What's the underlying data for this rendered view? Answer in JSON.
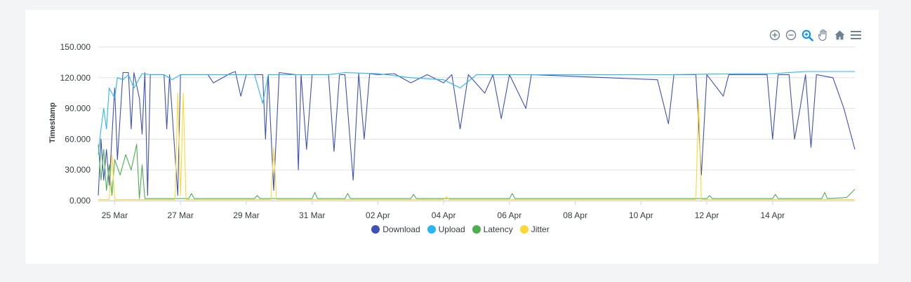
{
  "toolbar": {
    "icons": [
      "zoom-in-icon",
      "zoom-out-icon",
      "zoom-select-icon",
      "pan-hand-icon",
      "home-reset-icon",
      "menu-icon"
    ],
    "active_color": "#008ffb",
    "inactive_color": "#6e8192"
  },
  "chart_data": {
    "type": "line",
    "ylabel": "Timestamp",
    "ylim": [
      0,
      150
    ],
    "y_ticks": [
      "0.000",
      "30.000",
      "60.000",
      "90.000",
      "120.000",
      "150.000"
    ],
    "x_tick_labels": [
      "25 Mar",
      "27 Mar",
      "29 Mar",
      "31 Mar",
      "02 Apr",
      "04 Apr",
      "06 Apr",
      "08 Apr",
      "10 Apr",
      "12 Apr",
      "14 Apr"
    ],
    "xlim": [
      "2024-03-24T12:00",
      "2024-04-16T12:00"
    ],
    "grid": true,
    "legend_position": "bottom",
    "series": [
      {
        "name": "Download",
        "color": "#3f51b5",
        "points": [
          [
            "2024-03-24T12:00",
            5
          ],
          [
            "2024-03-24T14:00",
            60
          ],
          [
            "2024-03-24T16:00",
            20
          ],
          [
            "2024-03-24T18:00",
            50
          ],
          [
            "2024-03-24T20:00",
            15
          ],
          [
            "2024-03-25T00:00",
            110
          ],
          [
            "2024-03-25T02:00",
            40
          ],
          [
            "2024-03-25T06:00",
            125
          ],
          [
            "2024-03-25T10:00",
            125
          ],
          [
            "2024-03-25T12:00",
            70
          ],
          [
            "2024-03-25T14:00",
            125
          ],
          [
            "2024-03-25T18:00",
            100
          ],
          [
            "2024-03-25T20:00",
            65
          ],
          [
            "2024-03-25T22:00",
            125
          ],
          [
            "2024-03-26T00:00",
            5
          ],
          [
            "2024-03-26T02:00",
            123
          ],
          [
            "2024-03-26T12:00",
            123
          ],
          [
            "2024-03-26T14:00",
            70
          ],
          [
            "2024-03-26T16:00",
            123
          ],
          [
            "2024-03-26T22:00",
            5
          ],
          [
            "2024-03-27T00:00",
            123
          ],
          [
            "2024-03-27T20:00",
            123
          ],
          [
            "2024-03-28T00:00",
            115
          ],
          [
            "2024-03-28T12:00",
            124
          ],
          [
            "2024-03-28T16:00",
            126
          ],
          [
            "2024-03-28T20:00",
            102
          ],
          [
            "2024-03-29T00:00",
            123
          ],
          [
            "2024-03-29T12:00",
            123
          ],
          [
            "2024-03-29T14:00",
            60
          ],
          [
            "2024-03-29T16:00",
            123
          ],
          [
            "2024-03-29T20:00",
            10
          ],
          [
            "2024-03-30T00:00",
            125
          ],
          [
            "2024-03-30T12:00",
            123
          ],
          [
            "2024-03-30T14:00",
            30
          ],
          [
            "2024-03-30T16:00",
            123
          ],
          [
            "2024-03-30T20:00",
            50
          ],
          [
            "2024-03-31T00:00",
            123
          ],
          [
            "2024-03-31T12:00",
            123
          ],
          [
            "2024-03-31T16:00",
            48
          ],
          [
            "2024-03-31T20:00",
            123
          ],
          [
            "2024-04-01T00:00",
            123
          ],
          [
            "2024-04-01T06:00",
            20
          ],
          [
            "2024-04-01T10:00",
            124
          ],
          [
            "2024-04-01T14:00",
            60
          ],
          [
            "2024-04-01T18:00",
            124
          ],
          [
            "2024-04-02T00:00",
            123
          ],
          [
            "2024-04-02T12:00",
            124
          ],
          [
            "2024-04-03T00:00",
            115
          ],
          [
            "2024-04-03T12:00",
            123
          ],
          [
            "2024-04-04T00:00",
            115
          ],
          [
            "2024-04-04T06:00",
            123
          ],
          [
            "2024-04-04T12:00",
            70
          ],
          [
            "2024-04-04T18:00",
            123
          ],
          [
            "2024-04-05T06:00",
            105
          ],
          [
            "2024-04-05T12:00",
            123
          ],
          [
            "2024-04-05T18:00",
            80
          ],
          [
            "2024-04-06T00:00",
            123
          ],
          [
            "2024-04-06T12:00",
            90
          ],
          [
            "2024-04-06T16:00",
            123
          ],
          [
            "2024-04-10T12:00",
            118
          ],
          [
            "2024-04-10T20:00",
            75
          ],
          [
            "2024-04-11T00:00",
            123
          ],
          [
            "2024-04-11T16:00",
            123
          ],
          [
            "2024-04-11T20:00",
            25
          ],
          [
            "2024-04-12T00:00",
            123
          ],
          [
            "2024-04-12T12:00",
            102
          ],
          [
            "2024-04-12T16:00",
            123
          ],
          [
            "2024-04-13T20:00",
            123
          ],
          [
            "2024-04-14T00:00",
            60
          ],
          [
            "2024-04-14T04:00",
            123
          ],
          [
            "2024-04-14T12:00",
            123
          ],
          [
            "2024-04-14T16:00",
            60
          ],
          [
            "2024-04-14T20:00",
            90
          ],
          [
            "2024-04-15T00:00",
            123
          ],
          [
            "2024-04-15T04:00",
            52
          ],
          [
            "2024-04-15T08:00",
            123
          ],
          [
            "2024-04-15T20:00",
            120
          ],
          [
            "2024-04-16T04:00",
            90
          ],
          [
            "2024-04-16T12:00",
            50
          ]
        ]
      },
      {
        "name": "Upload",
        "color": "#29b6f6",
        "points": [
          [
            "2024-03-24T12:00",
            45
          ],
          [
            "2024-03-24T14:00",
            70
          ],
          [
            "2024-03-24T16:00",
            90
          ],
          [
            "2024-03-24T18:00",
            70
          ],
          [
            "2024-03-24T20:00",
            110
          ],
          [
            "2024-03-25T00:00",
            100
          ],
          [
            "2024-03-25T02:00",
            120
          ],
          [
            "2024-03-25T06:00",
            118
          ],
          [
            "2024-03-25T10:00",
            123
          ],
          [
            "2024-03-25T14:00",
            110
          ],
          [
            "2024-03-25T20:00",
            124
          ],
          [
            "2024-03-26T02:00",
            123
          ],
          [
            "2024-03-26T12:00",
            123
          ],
          [
            "2024-03-26T18:00",
            118
          ],
          [
            "2024-03-27T00:00",
            123
          ],
          [
            "2024-03-29T06:00",
            123
          ],
          [
            "2024-03-29T12:00",
            95
          ],
          [
            "2024-03-29T16:00",
            123
          ],
          [
            "2024-03-30T00:00",
            123
          ],
          [
            "2024-03-31T12:00",
            123
          ],
          [
            "2024-04-01T00:00",
            125
          ],
          [
            "2024-04-02T00:00",
            124
          ],
          [
            "2024-04-03T00:00",
            120
          ],
          [
            "2024-04-04T00:00",
            118
          ],
          [
            "2024-04-04T12:00",
            110
          ],
          [
            "2024-04-05T00:00",
            123
          ],
          [
            "2024-04-11T00:00",
            123
          ],
          [
            "2024-04-13T00:00",
            124
          ],
          [
            "2024-04-14T00:00",
            124
          ],
          [
            "2024-04-15T00:00",
            126
          ],
          [
            "2024-04-16T12:00",
            126
          ]
        ]
      },
      {
        "name": "Latency",
        "color": "#4caf50",
        "points": [
          [
            "2024-03-24T12:00",
            55
          ],
          [
            "2024-03-24T14:00",
            20
          ],
          [
            "2024-03-24T16:00",
            50
          ],
          [
            "2024-03-24T18:00",
            10
          ],
          [
            "2024-03-24T20:00",
            35
          ],
          [
            "2024-03-24T22:00",
            5
          ],
          [
            "2024-03-25T00:00",
            40
          ],
          [
            "2024-03-25T04:00",
            25
          ],
          [
            "2024-03-25T08:00",
            45
          ],
          [
            "2024-03-25T12:00",
            30
          ],
          [
            "2024-03-25T16:00",
            55
          ],
          [
            "2024-03-25T18:00",
            2
          ],
          [
            "2024-03-25T20:00",
            35
          ],
          [
            "2024-03-25T22:00",
            2
          ],
          [
            "2024-03-26T00:00",
            2
          ],
          [
            "2024-03-27T06:00",
            2
          ],
          [
            "2024-03-27T08:00",
            7
          ],
          [
            "2024-03-27T10:00",
            2
          ],
          [
            "2024-03-29T06:00",
            2
          ],
          [
            "2024-03-29T08:00",
            5
          ],
          [
            "2024-03-29T10:00",
            2
          ],
          [
            "2024-03-31T00:00",
            2
          ],
          [
            "2024-03-31T02:00",
            8
          ],
          [
            "2024-03-31T04:00",
            2
          ],
          [
            "2024-04-01T00:00",
            2
          ],
          [
            "2024-04-01T02:00",
            7
          ],
          [
            "2024-04-01T04:00",
            2
          ],
          [
            "2024-04-03T00:00",
            2
          ],
          [
            "2024-04-03T02:00",
            6
          ],
          [
            "2024-04-03T04:00",
            2
          ],
          [
            "2024-04-06T00:00",
            2
          ],
          [
            "2024-04-06T02:00",
            7
          ],
          [
            "2024-04-06T04:00",
            2
          ],
          [
            "2024-04-12T00:00",
            2
          ],
          [
            "2024-04-12T02:00",
            5
          ],
          [
            "2024-04-12T04:00",
            2
          ],
          [
            "2024-04-14T00:00",
            2
          ],
          [
            "2024-04-14T02:00",
            6
          ],
          [
            "2024-04-14T04:00",
            2
          ],
          [
            "2024-04-15T12:00",
            2
          ],
          [
            "2024-04-15T14:00",
            8
          ],
          [
            "2024-04-15T16:00",
            2
          ],
          [
            "2024-04-16T06:00",
            3
          ],
          [
            "2024-04-16T12:00",
            11
          ]
        ]
      },
      {
        "name": "Jitter",
        "color": "#fdd835",
        "points": [
          [
            "2024-03-24T12:00",
            1
          ],
          [
            "2024-03-24T20:00",
            1
          ],
          [
            "2024-03-24T22:00",
            45
          ],
          [
            "2024-03-25T00:00",
            1
          ],
          [
            "2024-03-26T20:00",
            1
          ],
          [
            "2024-03-26T22:00",
            105
          ],
          [
            "2024-03-27T00:00",
            5
          ],
          [
            "2024-03-27T02:00",
            105
          ],
          [
            "2024-03-27T04:00",
            1
          ],
          [
            "2024-03-29T18:00",
            1
          ],
          [
            "2024-03-29T20:00",
            52
          ],
          [
            "2024-03-29T22:00",
            1
          ],
          [
            "2024-04-04T00:00",
            1
          ],
          [
            "2024-04-04T02:00",
            4
          ],
          [
            "2024-04-04T04:00",
            1
          ],
          [
            "2024-04-11T16:00",
            1
          ],
          [
            "2024-04-11T18:00",
            100
          ],
          [
            "2024-04-11T20:00",
            1
          ],
          [
            "2024-04-16T12:00",
            1
          ]
        ]
      }
    ]
  }
}
